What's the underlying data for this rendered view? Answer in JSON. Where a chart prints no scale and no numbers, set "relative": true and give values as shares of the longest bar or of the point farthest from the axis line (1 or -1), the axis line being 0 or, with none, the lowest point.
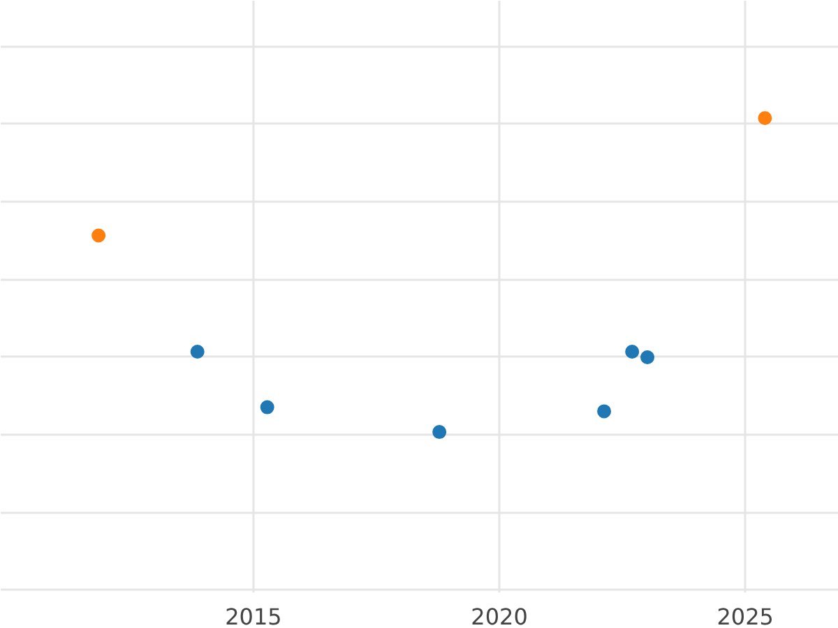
{
  "chart_data": {
    "type": "scatter",
    "relative": true,
    "xlim": [
      2009.86,
      2026.9
    ],
    "xticks": [
      2015,
      2020,
      2025
    ],
    "grid": true,
    "marker": "circle",
    "series": [
      {
        "color": "#1f77b4",
        "x": [
          2013.86,
          2015.28,
          2018.78,
          2022.13,
          2022.7,
          2023.01
        ],
        "values": [
          0.256,
          0.079,
          0,
          0.066,
          0.256,
          0.238
        ]
      },
      {
        "color": "#ff7f0e",
        "x": [
          2011.85,
          2025.4
        ],
        "values": [
          0.626,
          1
        ]
      }
    ]
  }
}
